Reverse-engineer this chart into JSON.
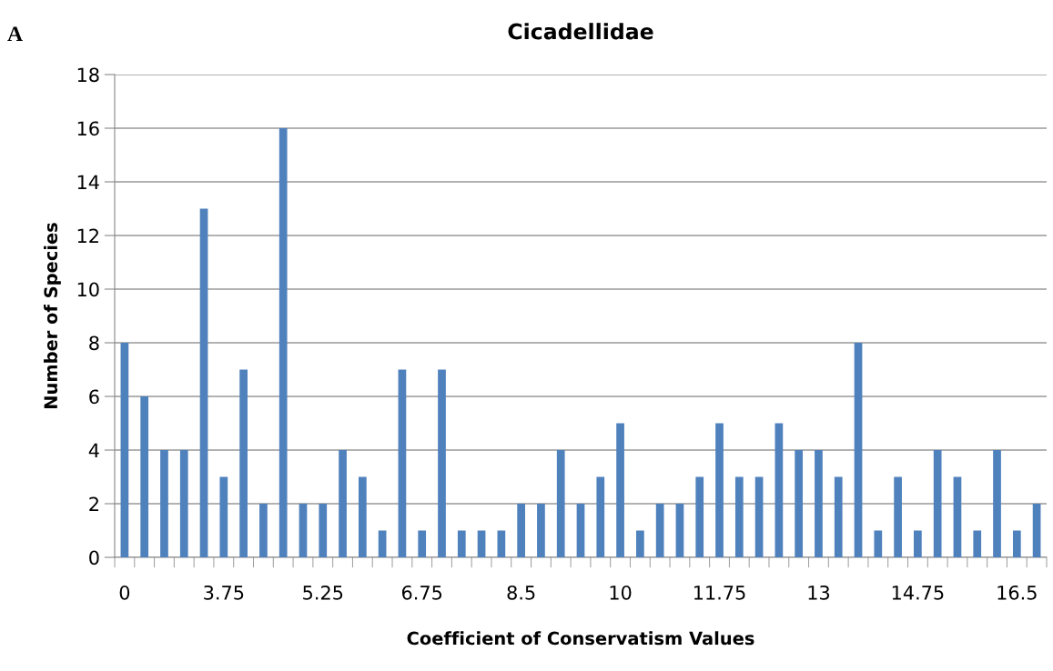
{
  "chart_data": {
    "type": "bar",
    "title": "Cicadellidae",
    "xlabel": "Coefficient of Conservatism Values",
    "ylabel": "Number of Species",
    "annotations": [
      "A"
    ],
    "categories": [
      "0",
      null,
      null,
      null,
      null,
      "3.75",
      null,
      null,
      null,
      null,
      "5.25",
      null,
      null,
      null,
      null,
      "6.75",
      null,
      null,
      null,
      null,
      "8.5",
      null,
      null,
      null,
      null,
      "10",
      null,
      null,
      null,
      null,
      "11.75",
      null,
      null,
      null,
      null,
      "13",
      null,
      null,
      null,
      null,
      "14.75",
      null,
      null,
      null,
      null,
      "16.5",
      null
    ],
    "values": [
      8,
      6,
      4,
      4,
      13,
      3,
      7,
      2,
      16,
      2,
      2,
      4,
      3,
      1,
      7,
      1,
      7,
      1,
      1,
      1,
      2,
      2,
      4,
      2,
      3,
      5,
      1,
      2,
      2,
      3,
      5,
      3,
      3,
      5,
      4,
      4,
      3,
      8,
      1,
      3,
      1,
      4,
      3,
      1,
      4,
      1,
      2
    ],
    "color": "#4f81bd",
    "ylim": [
      0,
      18
    ],
    "yticks": [
      0,
      2,
      4,
      6,
      8,
      10,
      12,
      14,
      16,
      18
    ],
    "grid": "y"
  }
}
